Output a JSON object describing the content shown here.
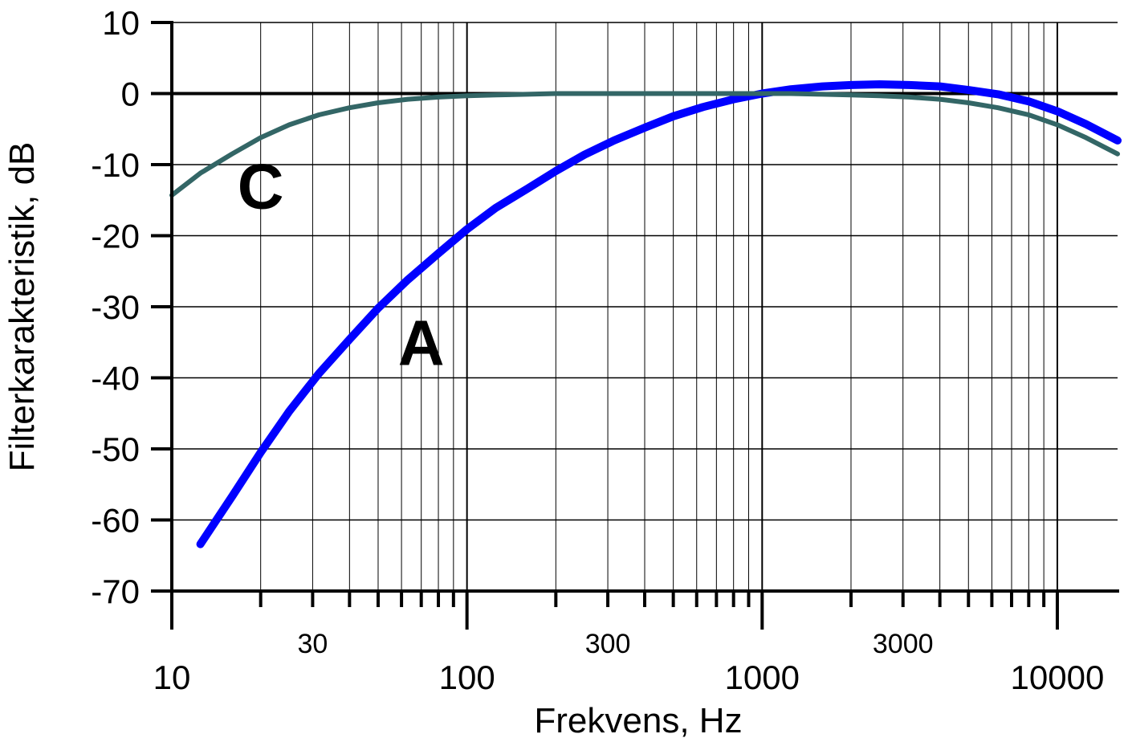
{
  "chart_data": {
    "type": "line",
    "xscale": "log",
    "xlim": [
      10,
      16000
    ],
    "ylim": [
      -70,
      10
    ],
    "xlabel": "Frekvens, Hz",
    "ylabel": "Filterkarakteristik, dB",
    "grid": true,
    "x_major_ticks": [
      "10",
      "100",
      "1000",
      "10000"
    ],
    "x_minor_tick_labels": [
      "30",
      "300",
      "3000"
    ],
    "y_ticks": [
      "10",
      "0",
      "-10",
      "-20",
      "-30",
      "-40",
      "-50",
      "-60",
      "-70"
    ],
    "series": [
      {
        "name": "A",
        "color": "#0000ff",
        "x": [
          12.5,
          16,
          20,
          25,
          31.5,
          40,
          50,
          63,
          80,
          100,
          125,
          160,
          200,
          250,
          315,
          400,
          500,
          630,
          800,
          1000,
          1250,
          1600,
          2000,
          2500,
          3150,
          4000,
          5000,
          6300,
          8000,
          10000,
          12500,
          16000
        ],
        "values": [
          -63.4,
          -56.7,
          -50.5,
          -44.7,
          -39.4,
          -34.6,
          -30.2,
          -26.2,
          -22.5,
          -19.1,
          -16.1,
          -13.4,
          -10.9,
          -8.6,
          -6.6,
          -4.8,
          -3.2,
          -1.9,
          -0.8,
          0.0,
          0.6,
          1.0,
          1.2,
          1.3,
          1.2,
          1.0,
          0.5,
          -0.1,
          -1.1,
          -2.5,
          -4.3,
          -6.6
        ]
      },
      {
        "name": "C",
        "color": "#336666",
        "x": [
          10,
          12.5,
          16,
          20,
          25,
          31.5,
          40,
          50,
          63,
          80,
          100,
          125,
          160,
          200,
          250,
          315,
          400,
          500,
          630,
          800,
          1000,
          1250,
          1600,
          2000,
          2500,
          3150,
          4000,
          5000,
          6300,
          8000,
          10000,
          12500,
          16000
        ],
        "values": [
          -14.3,
          -11.2,
          -8.5,
          -6.2,
          -4.4,
          -3.0,
          -2.0,
          -1.3,
          -0.8,
          -0.5,
          -0.3,
          -0.2,
          -0.1,
          0.0,
          0.0,
          0.0,
          0.0,
          0.0,
          0.0,
          0.0,
          0.0,
          0.0,
          -0.1,
          -0.2,
          -0.3,
          -0.5,
          -0.8,
          -1.3,
          -2.0,
          -3.0,
          -4.4,
          -6.2,
          -8.5
        ]
      }
    ],
    "annotations": [
      {
        "text": "C",
        "x": 20,
        "y": -13
      },
      {
        "text": "A",
        "x": 70,
        "y": -35
      }
    ]
  }
}
